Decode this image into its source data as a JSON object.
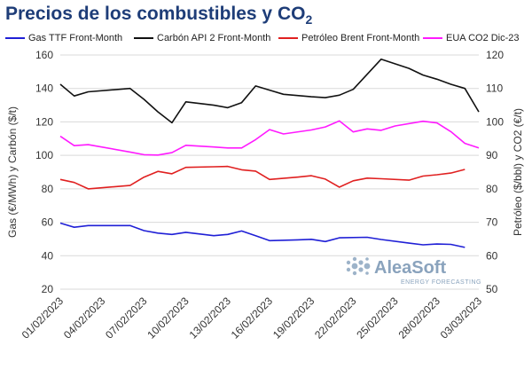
{
  "chart_data": {
    "type": "line",
    "title_main": "Precios de los combustibles y CO",
    "title_sub": "2",
    "ylabel_left": "Gas (€/MWh) y Carbón ($/t)",
    "ylabel_right": "Petróleo ($/bbl) y CO2 (€/t)",
    "ylim_left": [
      20,
      160
    ],
    "ylim_right": [
      50,
      120
    ],
    "yticks_left": [
      20,
      40,
      60,
      80,
      100,
      120,
      140,
      160
    ],
    "yticks_right": [
      50,
      60,
      70,
      80,
      90,
      100,
      110,
      120
    ],
    "grid": "horizontal",
    "legend_position": "top",
    "x_tick_labels": [
      "01/02/2023",
      "04/02/2023",
      "07/02/2023",
      "10/02/2023",
      "13/02/2023",
      "16/02/2023",
      "19/02/2023",
      "22/02/2023",
      "25/02/2023",
      "28/02/2023",
      "03/03/2023"
    ],
    "series": [
      {
        "name": "Gas TTF Front-Month",
        "color": "#1f1fd6",
        "axis": "left",
        "points": [
          [
            0,
            59.5
          ],
          [
            1,
            57.0
          ],
          [
            2,
            58.0
          ],
          [
            5,
            58.0
          ],
          [
            6,
            55.0
          ],
          [
            7,
            53.5
          ],
          [
            8,
            52.7
          ],
          [
            9,
            54.0
          ],
          [
            11,
            52.0
          ],
          [
            12,
            52.7
          ],
          [
            13,
            54.8
          ],
          [
            14,
            52.0
          ],
          [
            15,
            49.0
          ],
          [
            17,
            49.5
          ],
          [
            18,
            49.8
          ],
          [
            19,
            48.5
          ],
          [
            20,
            50.7
          ],
          [
            22,
            51.0
          ],
          [
            23,
            49.7
          ],
          [
            25,
            47.5
          ],
          [
            26,
            46.5
          ],
          [
            27,
            47.0
          ],
          [
            28,
            46.8
          ],
          [
            29,
            45.0
          ]
        ]
      },
      {
        "name": "Carbón API 2 Front-Month",
        "color": "#111111",
        "axis": "left",
        "points": [
          [
            0,
            142.5
          ],
          [
            1,
            135.5
          ],
          [
            2,
            138.0
          ],
          [
            5,
            140.0
          ],
          [
            6,
            133.5
          ],
          [
            7,
            126.0
          ],
          [
            8,
            119.5
          ],
          [
            9,
            132.0
          ],
          [
            11,
            130.0
          ],
          [
            12,
            128.5
          ],
          [
            13,
            131.5
          ],
          [
            14,
            141.5
          ],
          [
            15,
            139.0
          ],
          [
            16,
            136.5
          ],
          [
            18,
            135.0
          ],
          [
            19,
            134.5
          ],
          [
            20,
            136.0
          ],
          [
            21,
            139.5
          ],
          [
            23,
            157.5
          ],
          [
            25,
            152.0
          ],
          [
            26,
            148.0
          ],
          [
            27,
            145.5
          ],
          [
            28,
            142.5
          ],
          [
            29,
            140.0
          ],
          [
            30,
            126.0
          ]
        ]
      },
      {
        "name": "Petróleo Brent Front-Month",
        "color": "#e02020",
        "axis": "right",
        "points": [
          [
            0,
            82.8
          ],
          [
            1,
            81.9
          ],
          [
            2,
            80.0
          ],
          [
            5,
            81.0
          ],
          [
            6,
            83.5
          ],
          [
            7,
            85.2
          ],
          [
            8,
            84.5
          ],
          [
            9,
            86.4
          ],
          [
            11,
            86.6
          ],
          [
            12,
            86.7
          ],
          [
            13,
            85.7
          ],
          [
            14,
            85.3
          ],
          [
            15,
            82.8
          ],
          [
            17,
            83.5
          ],
          [
            18,
            83.9
          ],
          [
            19,
            82.9
          ],
          [
            20,
            80.5
          ],
          [
            21,
            82.4
          ],
          [
            22,
            83.2
          ],
          [
            23,
            83.0
          ],
          [
            25,
            82.6
          ],
          [
            26,
            83.8
          ],
          [
            27,
            84.2
          ],
          [
            28,
            84.7
          ],
          [
            29,
            85.8
          ]
        ]
      },
      {
        "name": "EUA CO2 Dic-23",
        "color": "#ff1aff",
        "axis": "right",
        "points": [
          [
            0,
            95.7
          ],
          [
            1,
            92.9
          ],
          [
            2,
            93.2
          ],
          [
            5,
            91.0
          ],
          [
            6,
            90.2
          ],
          [
            7,
            90.1
          ],
          [
            8,
            90.8
          ],
          [
            9,
            93.0
          ],
          [
            11,
            92.5
          ],
          [
            12,
            92.2
          ],
          [
            13,
            92.2
          ],
          [
            14,
            94.7
          ],
          [
            15,
            97.7
          ],
          [
            16,
            96.4
          ],
          [
            18,
            97.6
          ],
          [
            19,
            98.5
          ],
          [
            20,
            100.3
          ],
          [
            21,
            97.0
          ],
          [
            22,
            97.9
          ],
          [
            23,
            97.5
          ],
          [
            24,
            98.8
          ],
          [
            26,
            100.2
          ],
          [
            27,
            99.7
          ],
          [
            28,
            97.1
          ],
          [
            29,
            93.6
          ],
          [
            30,
            92.2
          ]
        ]
      }
    ]
  },
  "watermark": {
    "brand": "AleaSoft",
    "tagline": "ENERGY FORECASTING"
  }
}
